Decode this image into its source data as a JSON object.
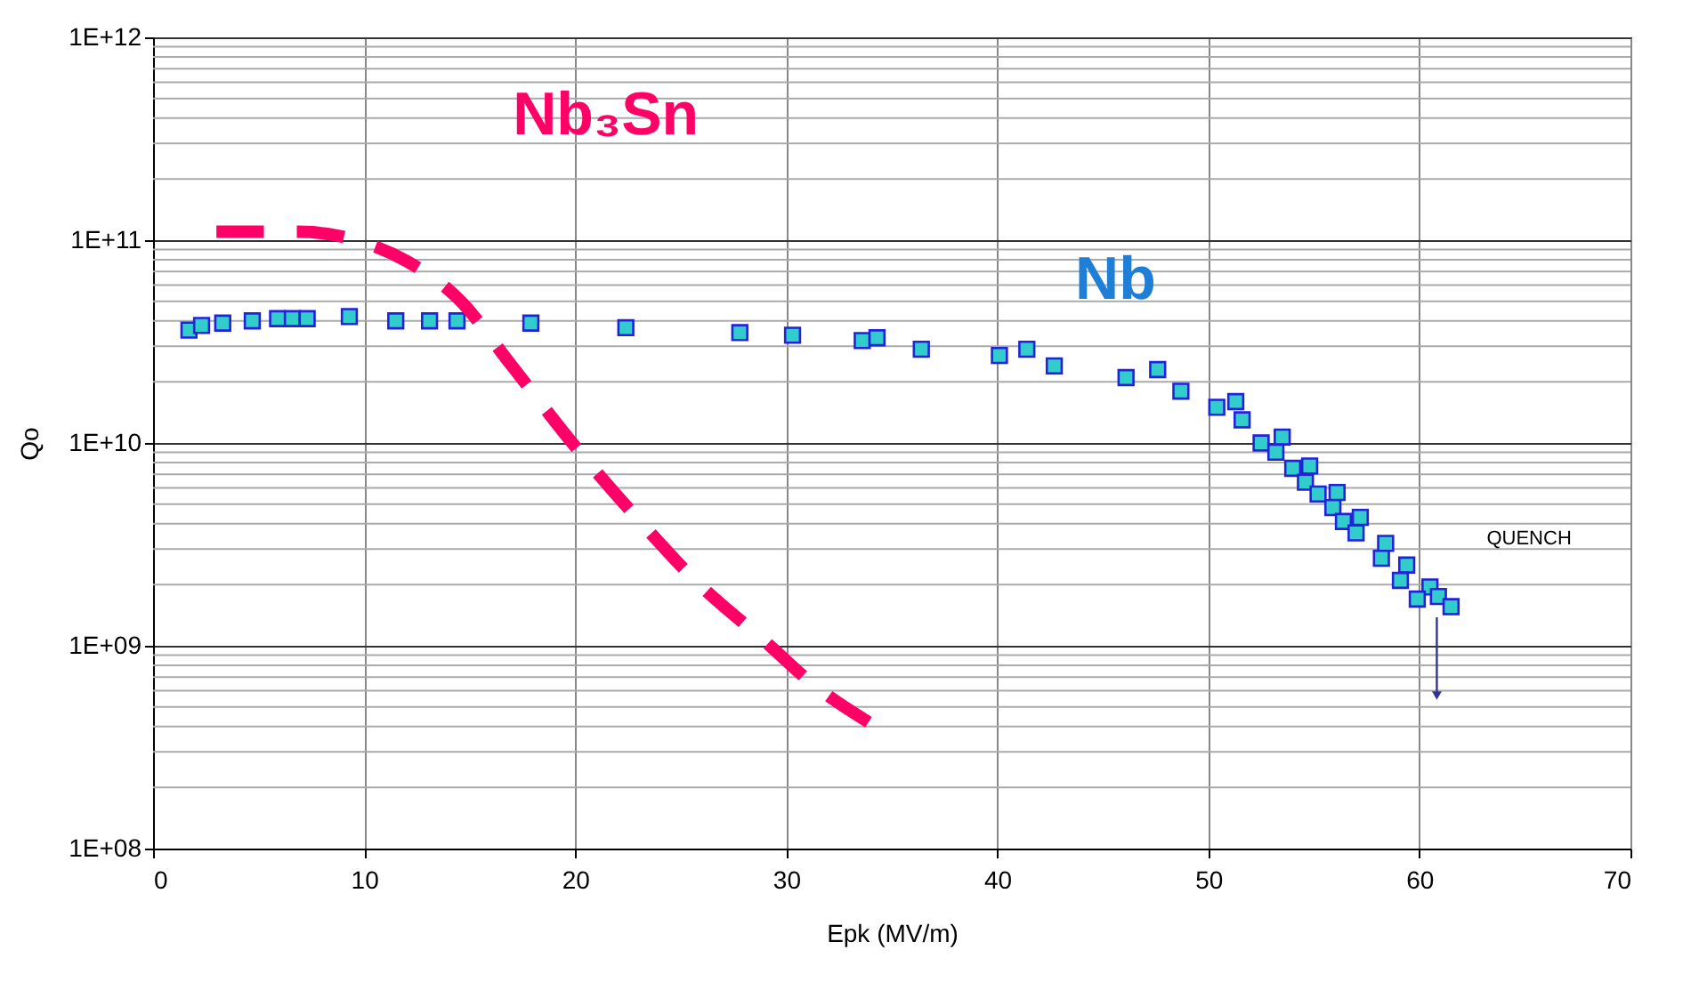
{
  "chart_data": {
    "type": "scatter",
    "xlabel": "Epk (MV/m)",
    "ylabel": "Qo",
    "xlim": [
      0,
      70
    ],
    "xticks": [
      0,
      10,
      20,
      30,
      40,
      50,
      60,
      70
    ],
    "ylim": [
      100000000.0,
      1000000000000.0
    ],
    "yticks": [
      {
        "value": 100000000.0,
        "label": "1E+08"
      },
      {
        "value": 1000000000.0,
        "label": "1E+09"
      },
      {
        "value": 10000000000.0,
        "label": "1E+10"
      },
      {
        "value": 100000000000.0,
        "label": "1E+11"
      },
      {
        "value": 1000000000000.0,
        "label": "1E+12"
      }
    ],
    "log": "y",
    "grid": true,
    "legend": false,
    "series": [
      {
        "name": "Nb",
        "marker": "square",
        "color": "#33cccc",
        "x": [
          1.7,
          2.3,
          3.3,
          4.7,
          5.9,
          6.6,
          7.3,
          9.3,
          11.5,
          13.1,
          14.4,
          17.9,
          22.4,
          27.8,
          30.3,
          33.6,
          34.3,
          36.4,
          40.1,
          41.4,
          42.7,
          46.1,
          47.6,
          48.7,
          50.4,
          51.3,
          51.6,
          52.5,
          53.5,
          53.2,
          54.0,
          54.8,
          54.6,
          55.2,
          56.1,
          55.9,
          56.4,
          57.2,
          57.0,
          58.4,
          58.2,
          59.4,
          59.1,
          60.5,
          59.9,
          60.9,
          61.5
        ],
        "values": [
          36000000000.0,
          38000000000.0,
          39000000000.0,
          40000000000.0,
          41000000000.0,
          41000000000.0,
          41000000000.0,
          42000000000.0,
          40000000000.0,
          40000000000.0,
          40000000000.0,
          39000000000.0,
          37000000000.0,
          35000000000.0,
          34000000000.0,
          32000000000.0,
          33000000000.0,
          29000000000.0,
          27000000000.0,
          29000000000.0,
          24000000000.0,
          21000000000.0,
          23000000000.0,
          18000000000.0,
          15000000000.0,
          16000000000.0,
          13000000000.0,
          10000000000.0,
          10700000000.0,
          9000000000.0,
          7500000000.0,
          7700000000.0,
          6400000000.0,
          5600000000.0,
          5700000000.0,
          4800000000.0,
          4100000000.0,
          4300000000.0,
          3600000000.0,
          3200000000.0,
          2700000000.0,
          2500000000.0,
          2100000000.0,
          1950000000.0,
          1700000000.0,
          1750000000.0,
          1560000000.0
        ]
      },
      {
        "name": "Nb₃Sn",
        "type": "line",
        "line_style": "dashed",
        "color": "#ff0066",
        "x": [
          3,
          6.9,
          9.9,
          12,
          14.5,
          17,
          20,
          22.9,
          25.9,
          29,
          31.4,
          33.9
        ],
        "values": [
          110000000000.0,
          110000000000.0,
          98000000000.0,
          79000000000.0,
          51000000000.0,
          24000000000.0,
          9600000000.0,
          4300000000.0,
          2000000000.0,
          1050000000.0,
          630000000.0,
          420000000.0
        ]
      }
    ],
    "annotations": [
      "QUENCH"
    ]
  }
}
